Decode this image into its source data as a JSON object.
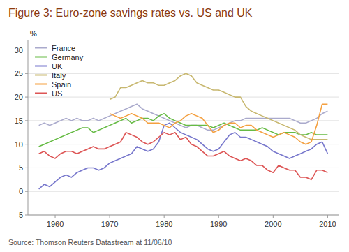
{
  "chart_data": {
    "type": "line",
    "title": "Figure 3: Euro-zone savings rates vs. US and UK",
    "source": "Source: Thomson Reuters Datastream at 11/06/10",
    "ylabel": "%",
    "xlim": [
      1955,
      2012
    ],
    "ylim": [
      -5,
      32
    ],
    "xticks": [
      1960,
      1970,
      1980,
      1990,
      2000,
      2010
    ],
    "yticks": [
      -5,
      0,
      5,
      10,
      15,
      20,
      25,
      30
    ],
    "grid": true,
    "legend": "upper left",
    "series": [
      {
        "name": "France",
        "color": "#aaaacc",
        "x": [
          1957,
          1958,
          1959,
          1960,
          1961,
          1962,
          1963,
          1964,
          1965,
          1966,
          1967,
          1968,
          1969,
          1970,
          1971,
          1972,
          1973,
          1974,
          1975,
          1976,
          1977,
          1978,
          1979,
          1980,
          1981,
          1982,
          1983,
          1984,
          1985,
          1986,
          1987,
          1988,
          1989,
          1990,
          1991,
          1992,
          1993,
          1994,
          1995,
          1996,
          1997,
          1998,
          1999,
          2000,
          2001,
          2002,
          2003,
          2004,
          2005,
          2006,
          2007,
          2008,
          2009,
          2010
        ],
        "values": [
          14.0,
          14.5,
          14.0,
          14.5,
          15.0,
          15.5,
          15.0,
          15.5,
          15.0,
          15.0,
          15.5,
          15.0,
          15.5,
          16.0,
          16.5,
          17.0,
          17.5,
          18.0,
          18.5,
          17.5,
          17.0,
          16.5,
          16.0,
          15.5,
          15.0,
          14.5,
          14.0,
          13.5,
          14.0,
          14.0,
          13.5,
          13.0,
          13.0,
          13.5,
          14.0,
          14.5,
          15.0,
          15.0,
          15.5,
          15.5,
          15.5,
          15.5,
          15.5,
          15.5,
          15.5,
          15.5,
          15.5,
          15.0,
          14.5,
          14.5,
          15.0,
          15.5,
          16.5,
          17.0
        ]
      },
      {
        "name": "Germany",
        "color": "#66bb44",
        "x": [
          1957,
          1958,
          1959,
          1960,
          1961,
          1962,
          1963,
          1964,
          1965,
          1966,
          1967,
          1968,
          1969,
          1970,
          1971,
          1972,
          1973,
          1974,
          1975,
          1976,
          1977,
          1978,
          1979,
          1980,
          1981,
          1982,
          1983,
          1984,
          1985,
          1986,
          1987,
          1988,
          1989,
          1990,
          1991,
          1992,
          1993,
          1994,
          1995,
          1996,
          1997,
          1998,
          1999,
          2000,
          2001,
          2002,
          2003,
          2004,
          2005,
          2006,
          2007,
          2008,
          2009,
          2010
        ],
        "values": [
          9.5,
          10.0,
          10.5,
          11.0,
          11.5,
          12.0,
          12.5,
          13.0,
          13.5,
          13.5,
          12.5,
          13.0,
          13.5,
          14.0,
          14.5,
          15.0,
          15.5,
          14.5,
          15.0,
          15.5,
          15.5,
          15.0,
          16.0,
          16.5,
          15.5,
          15.0,
          14.5,
          14.0,
          14.0,
          14.0,
          14.0,
          14.0,
          13.5,
          14.0,
          14.5,
          14.0,
          13.5,
          13.0,
          13.0,
          13.0,
          13.0,
          13.5,
          13.0,
          12.5,
          12.0,
          12.5,
          12.5,
          12.5,
          12.0,
          12.0,
          12.5,
          12.0,
          12.0,
          12.0
        ]
      },
      {
        "name": "UK",
        "color": "#7777cc",
        "x": [
          1957,
          1958,
          1959,
          1960,
          1961,
          1962,
          1963,
          1964,
          1965,
          1966,
          1967,
          1968,
          1969,
          1970,
          1971,
          1972,
          1973,
          1974,
          1975,
          1976,
          1977,
          1978,
          1979,
          1980,
          1981,
          1982,
          1983,
          1984,
          1985,
          1986,
          1987,
          1988,
          1989,
          1990,
          1991,
          1992,
          1993,
          1994,
          1995,
          1996,
          1997,
          1998,
          1999,
          2000,
          2001,
          2002,
          2003,
          2004,
          2005,
          2006,
          2007,
          2008,
          2009,
          2010
        ],
        "values": [
          0.5,
          1.5,
          1.0,
          2.0,
          3.0,
          3.5,
          3.0,
          4.0,
          4.5,
          5.0,
          5.0,
          4.5,
          5.0,
          6.0,
          6.5,
          7.0,
          7.5,
          8.0,
          9.5,
          9.0,
          8.5,
          9.0,
          10.5,
          14.0,
          14.5,
          13.5,
          12.5,
          12.0,
          11.5,
          11.0,
          10.0,
          9.0,
          8.5,
          9.0,
          10.5,
          12.0,
          12.5,
          11.5,
          11.5,
          11.0,
          10.5,
          10.0,
          9.5,
          8.5,
          8.0,
          7.5,
          7.0,
          7.5,
          8.0,
          8.5,
          9.0,
          10.0,
          10.5,
          8.0
        ]
      },
      {
        "name": "Italy",
        "color": "#c8b870",
        "x": [
          1970,
          1971,
          1972,
          1973,
          1974,
          1975,
          1976,
          1977,
          1978,
          1979,
          1980,
          1981,
          1982,
          1983,
          1984,
          1985,
          1986,
          1987,
          1988,
          1989,
          1990,
          1991,
          1992,
          1993,
          1994,
          1995,
          1996,
          1997,
          1998,
          1999,
          2000,
          2001,
          2002,
          2003,
          2004,
          2005,
          2006,
          2007,
          2008,
          2009,
          2010
        ],
        "values": [
          19.5,
          20.0,
          22.0,
          22.0,
          22.5,
          23.0,
          23.5,
          23.0,
          23.0,
          22.5,
          22.5,
          23.0,
          23.5,
          24.5,
          25.0,
          24.5,
          23.0,
          22.5,
          22.0,
          21.5,
          21.5,
          21.0,
          20.5,
          20.0,
          20.0,
          18.0,
          17.0,
          16.5,
          16.0,
          15.5,
          15.0,
          14.5,
          14.0,
          13.5,
          13.0,
          12.0,
          11.5,
          11.0,
          11.0,
          11.0,
          11.0
        ]
      },
      {
        "name": "Spain",
        "color": "#f4a040",
        "x": [
          1970,
          1971,
          1972,
          1973,
          1974,
          1975,
          1976,
          1977,
          1978,
          1979,
          1980,
          1981,
          1982,
          1983,
          1984,
          1985,
          1986,
          1987,
          1988,
          1989,
          1990,
          1991,
          1992,
          1993,
          1994,
          1995,
          1996,
          1997,
          1998,
          1999,
          2000,
          2001,
          2002,
          2003,
          2004,
          2005,
          2006,
          2007,
          2008,
          2009,
          2010
        ],
        "values": [
          16.5,
          16.0,
          15.5,
          16.0,
          16.5,
          16.0,
          15.5,
          14.5,
          14.5,
          14.5,
          14.0,
          13.5,
          14.5,
          15.0,
          16.0,
          16.5,
          16.0,
          15.5,
          14.0,
          12.5,
          13.0,
          14.0,
          14.5,
          14.5,
          13.5,
          14.0,
          14.0,
          13.0,
          12.5,
          12.0,
          11.5,
          12.0,
          12.5,
          12.0,
          11.5,
          10.5,
          10.0,
          10.5,
          14.0,
          18.5,
          18.5
        ]
      },
      {
        "name": "US",
        "color": "#dd5555",
        "x": [
          1957,
          1958,
          1959,
          1960,
          1961,
          1962,
          1963,
          1964,
          1965,
          1966,
          1967,
          1968,
          1969,
          1970,
          1971,
          1972,
          1973,
          1974,
          1975,
          1976,
          1977,
          1978,
          1979,
          1980,
          1981,
          1982,
          1983,
          1984,
          1985,
          1986,
          1987,
          1988,
          1989,
          1990,
          1991,
          1992,
          1993,
          1994,
          1995,
          1996,
          1997,
          1998,
          1999,
          2000,
          2001,
          2002,
          2003,
          2004,
          2005,
          2006,
          2007,
          2008,
          2009,
          2010
        ],
        "values": [
          8.0,
          8.5,
          7.5,
          7.0,
          8.0,
          8.5,
          8.5,
          8.0,
          8.5,
          9.0,
          9.5,
          9.0,
          9.0,
          9.5,
          10.0,
          10.5,
          12.5,
          12.0,
          11.5,
          10.5,
          10.0,
          10.5,
          11.5,
          12.5,
          12.0,
          12.5,
          11.0,
          11.5,
          10.0,
          9.5,
          8.5,
          7.5,
          7.5,
          8.0,
          8.5,
          7.5,
          7.0,
          6.5,
          7.0,
          6.5,
          5.5,
          5.5,
          4.5,
          4.0,
          5.5,
          5.0,
          4.5,
          4.5,
          3.0,
          3.0,
          2.5,
          4.5,
          4.5,
          4.0
        ]
      }
    ]
  }
}
